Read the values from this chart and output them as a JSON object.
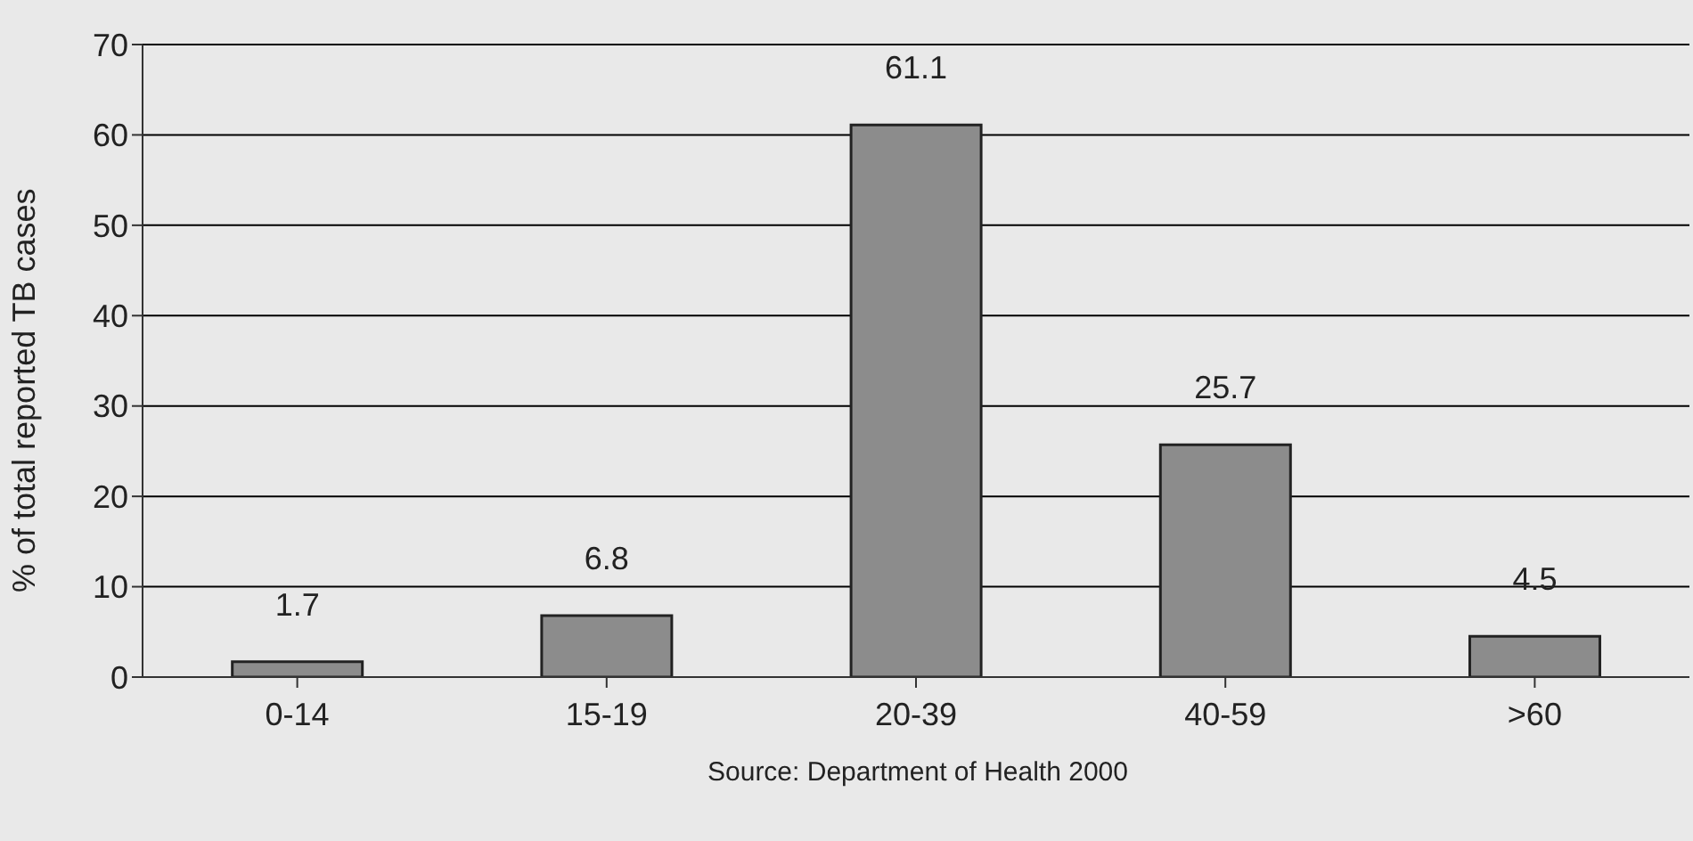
{
  "chart_data": {
    "type": "bar",
    "ylabel": "% of total reported TB cases",
    "categories": [
      "0-14",
      "15-19",
      "20-39",
      "40-59",
      ">60"
    ],
    "values": [
      1.7,
      6.8,
      61.1,
      25.7,
      4.5
    ],
    "color": "#8c8c8c",
    "ylim": [
      0,
      70
    ],
    "yticks": [
      0,
      10,
      20,
      30,
      40,
      50,
      60,
      70
    ],
    "grid": "y",
    "data_labels": true,
    "annotations": [
      "Source: Department of Health 2000"
    ]
  }
}
